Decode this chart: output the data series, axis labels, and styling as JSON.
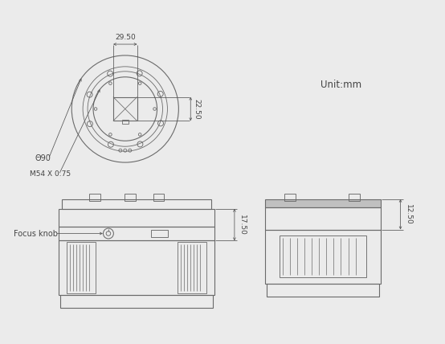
{
  "bg_color": "#ebebeb",
  "line_color": "#6a6a6a",
  "dim_color": "#555555",
  "text_color": "#444444",
  "title": "Unit:mm",
  "dim_29_50": "29.50",
  "dim_22_50": "22.50",
  "dim_17_50": "17.50",
  "dim_12_50": "12.50",
  "label_phi90": "Θ90",
  "label_m54": "M54 X 0.75",
  "label_focus": "Focus knob",
  "font_size_dim": 6.5,
  "font_size_label": 7.0,
  "font_size_unit": 8.5
}
